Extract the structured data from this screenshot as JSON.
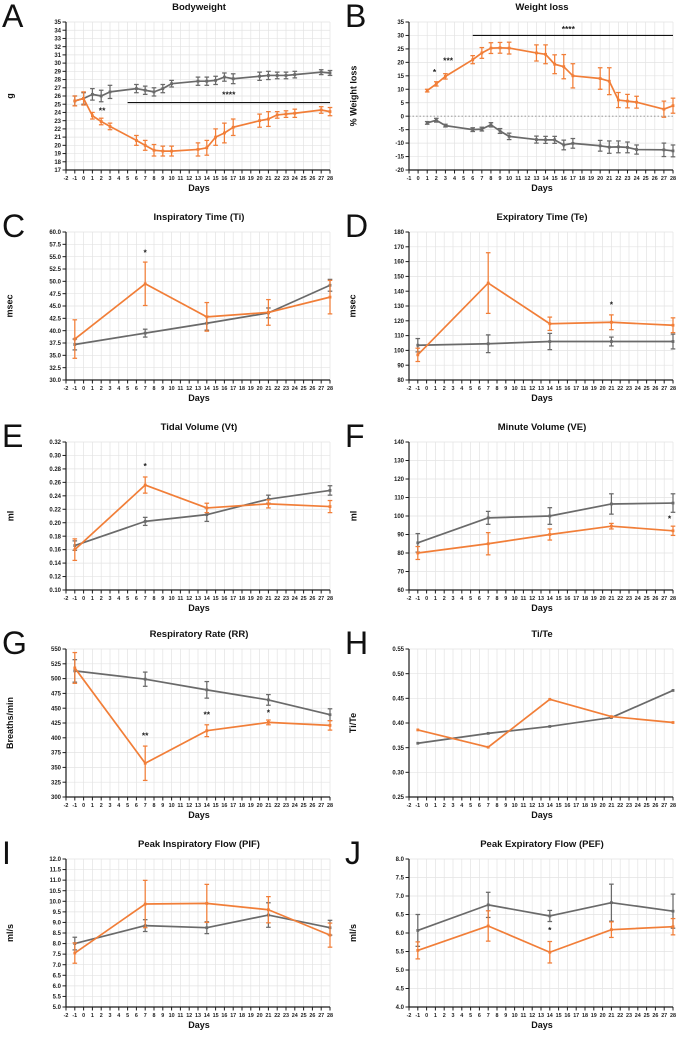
{
  "figure": {
    "xlabel_shared": "Days",
    "colors": {
      "control_gray": "#6A6A6A",
      "treated_orange": "#F17E38",
      "grid": "#E3E3E3",
      "axis": "#1c1c1c",
      "significance": "#111111"
    }
  },
  "chart_data": [
    {
      "id": "A",
      "type": "line",
      "title": "Bodyweight",
      "xlabel": "Days",
      "ylabel": "g",
      "xlim": [
        -2,
        28
      ],
      "ylim": [
        17,
        35
      ],
      "ystep": 1,
      "ydec": 0,
      "grid": true,
      "zero_line": false,
      "series": [
        {
          "name": "gray",
          "color": "#6A6A6A",
          "x": [
            -1,
            0,
            1,
            2,
            3,
            6,
            7,
            8,
            9,
            10,
            13,
            14,
            15,
            16,
            17,
            20,
            21,
            22,
            23,
            24,
            27,
            28
          ],
          "y": [
            25.4,
            25.7,
            26.2,
            26.0,
            26.5,
            26.9,
            26.7,
            26.5,
            26.9,
            27.5,
            27.8,
            27.8,
            27.9,
            28.3,
            28.1,
            28.4,
            28.5,
            28.5,
            28.5,
            28.6,
            28.9,
            28.8
          ],
          "err": [
            0.6,
            0.7,
            0.7,
            0.7,
            0.8,
            0.5,
            0.5,
            0.5,
            0.5,
            0.4,
            0.5,
            0.5,
            0.5,
            0.5,
            0.6,
            0.5,
            0.5,
            0.4,
            0.4,
            0.4,
            0.3,
            0.3
          ]
        },
        {
          "name": "orange",
          "color": "#F17E38",
          "x": [
            -1,
            0,
            1,
            2,
            3,
            6,
            7,
            8,
            9,
            10,
            13,
            14,
            15,
            16,
            17,
            20,
            21,
            22,
            23,
            24,
            27,
            28
          ],
          "y": [
            25.4,
            25.7,
            23.6,
            22.9,
            22.3,
            20.6,
            20.0,
            19.4,
            19.3,
            19.3,
            19.5,
            19.7,
            21.0,
            21.5,
            22.2,
            23.0,
            23.2,
            23.7,
            23.8,
            23.9,
            24.3,
            24.1
          ],
          "err": [
            0.6,
            0.8,
            0.4,
            0.4,
            0.4,
            0.6,
            0.6,
            0.7,
            0.6,
            0.6,
            0.8,
            0.9,
            1.0,
            1.2,
            1.0,
            0.8,
            0.9,
            0.4,
            0.4,
            0.5,
            0.4,
            0.5
          ]
        }
      ],
      "annotations": [
        {
          "type": "stars",
          "text": "**",
          "x": 2.1,
          "y": 23.9
        },
        {
          "type": "line",
          "x1": 5,
          "x2": 28,
          "y": 25.2
        },
        {
          "type": "stars",
          "text": "****",
          "x": 16.5,
          "y": 25.8
        }
      ]
    },
    {
      "id": "B",
      "type": "line",
      "title": "Weight loss",
      "xlabel": "Days",
      "ylabel": "% Weight loss",
      "xlim": [
        -1,
        28
      ],
      "ylim": [
        -20,
        35
      ],
      "ystep": 5,
      "ydec": 0,
      "grid": true,
      "zero_line": true,
      "series": [
        {
          "name": "gray",
          "color": "#6A6A6A",
          "x": [
            1,
            2,
            3,
            6,
            7,
            8,
            9,
            10,
            13,
            14,
            15,
            16,
            17,
            20,
            21,
            22,
            23,
            24,
            27,
            28
          ],
          "y": [
            -2.5,
            -1.5,
            -3.5,
            -5.0,
            -4.8,
            -3.2,
            -5.5,
            -7.5,
            -8.7,
            -8.8,
            -8.8,
            -10.7,
            -10.1,
            -11.0,
            -11.5,
            -11.4,
            -11.6,
            -12.4,
            -12.5,
            -12.9
          ],
          "err": [
            0.5,
            0.7,
            0.5,
            0.7,
            0.7,
            0.8,
            0.9,
            1.2,
            1.3,
            1.3,
            1.3,
            1.8,
            1.8,
            2.0,
            2.3,
            2.2,
            2.0,
            1.7,
            2.5,
            2.2
          ]
        },
        {
          "name": "orange",
          "color": "#F17E38",
          "x": [
            1,
            2,
            3,
            6,
            7,
            8,
            9,
            10,
            13,
            14,
            15,
            16,
            17,
            20,
            21,
            22,
            23,
            24,
            27,
            28
          ],
          "y": [
            9.5,
            12.0,
            14.8,
            21.0,
            23.5,
            25.3,
            25.4,
            25.3,
            23.5,
            23.0,
            19.3,
            18.4,
            15.0,
            14.0,
            13.0,
            6.0,
            5.6,
            5.2,
            2.6,
            3.9
          ],
          "err": [
            0.5,
            0.8,
            1.0,
            1.5,
            2.0,
            2.0,
            2.0,
            2.2,
            3.0,
            3.5,
            3.5,
            4.5,
            4.5,
            4.0,
            5.0,
            2.8,
            2.5,
            2.2,
            3.0,
            2.8
          ]
        }
      ],
      "annotations": [
        {
          "type": "stars",
          "text": "*",
          "x": 1.8,
          "y": 15.3
        },
        {
          "type": "stars",
          "text": "***",
          "x": 3.3,
          "y": 19.5
        },
        {
          "type": "line",
          "x1": 6,
          "x2": 28,
          "y": 30
        },
        {
          "type": "stars",
          "text": "****",
          "x": 16.5,
          "y": 31.3
        }
      ]
    },
    {
      "id": "C",
      "type": "line",
      "title": "Inspiratory Time (Ti)",
      "xlabel": "Days",
      "ylabel": "msec",
      "xlim": [
        -2,
        28
      ],
      "ylim": [
        30,
        60
      ],
      "ystep": 2.5,
      "ydec": 1,
      "grid": true,
      "zero_line": false,
      "series": [
        {
          "name": "gray",
          "color": "#6A6A6A",
          "x": [
            -1,
            7,
            14,
            21,
            28
          ],
          "y": [
            37.2,
            39.5,
            41.5,
            43.6,
            49.2
          ],
          "err": [
            1.1,
            0.8,
            1.4,
            1.0,
            1.2
          ]
        },
        {
          "name": "orange",
          "color": "#F17E38",
          "x": [
            -1,
            7,
            14,
            21,
            28
          ],
          "y": [
            38.3,
            49.5,
            42.8,
            43.7,
            46.8
          ],
          "err": [
            3.9,
            4.4,
            2.9,
            2.6,
            3.4
          ]
        }
      ],
      "annotations": [
        {
          "type": "stars",
          "text": "*",
          "x": 7,
          "y": 55.2
        }
      ]
    },
    {
      "id": "D",
      "type": "line",
      "title": "Expiratory Time (Te)",
      "xlabel": "Days",
      "ylabel": "msec",
      "xlim": [
        -2,
        28
      ],
      "ylim": [
        80,
        180
      ],
      "ystep": 10,
      "ydec": 0,
      "grid": true,
      "zero_line": false,
      "series": [
        {
          "name": "gray",
          "color": "#6A6A6A",
          "x": [
            -1,
            7,
            14,
            21,
            28
          ],
          "y": [
            103.5,
            104.5,
            106,
            106,
            106
          ],
          "err": [
            4.5,
            6,
            5.5,
            3,
            5
          ]
        },
        {
          "name": "orange",
          "color": "#F17E38",
          "x": [
            -1,
            7,
            14,
            21,
            28
          ],
          "y": [
            97,
            145.5,
            118,
            119,
            117
          ],
          "err": [
            4.5,
            20.5,
            4.5,
            5,
            5
          ]
        }
      ],
      "annotations": [
        {
          "type": "stars",
          "text": "*",
          "x": 21,
          "y": 129
        }
      ]
    },
    {
      "id": "E",
      "type": "line",
      "title": "Tidal Volume (Vt)",
      "xlabel": "Days",
      "ylabel": "ml",
      "xlim": [
        -2,
        28
      ],
      "ylim": [
        0.1,
        0.32
      ],
      "ystep": 0.02,
      "ydec": 2,
      "grid": true,
      "zero_line": false,
      "series": [
        {
          "name": "gray",
          "color": "#6A6A6A",
          "x": [
            -1,
            7,
            14,
            21,
            28
          ],
          "y": [
            0.166,
            0.202,
            0.212,
            0.235,
            0.248
          ],
          "err": [
            0.007,
            0.006,
            0.01,
            0.006,
            0.007
          ]
        },
        {
          "name": "orange",
          "color": "#F17E38",
          "x": [
            -1,
            7,
            14,
            21,
            28
          ],
          "y": [
            0.16,
            0.256,
            0.222,
            0.228,
            0.224
          ],
          "err": [
            0.016,
            0.012,
            0.007,
            0.006,
            0.009
          ]
        }
      ],
      "annotations": [
        {
          "type": "stars",
          "text": "*",
          "x": 7,
          "y": 0.28
        }
      ]
    },
    {
      "id": "F",
      "type": "line",
      "title": "Minute Volume (VE)",
      "xlabel": "Days",
      "ylabel": "ml",
      "xlim": [
        -2,
        28
      ],
      "ylim": [
        60,
        140
      ],
      "ystep": 10,
      "ydec": 0,
      "grid": true,
      "zero_line": false,
      "series": [
        {
          "name": "gray",
          "color": "#6A6A6A",
          "x": [
            -1,
            7,
            14,
            21,
            28
          ],
          "y": [
            85.5,
            99,
            100,
            106.5,
            107
          ],
          "err": [
            5,
            3.5,
            4.5,
            5.5,
            5
          ]
        },
        {
          "name": "orange",
          "color": "#F17E38",
          "x": [
            -1,
            7,
            14,
            21,
            28
          ],
          "y": [
            80,
            85,
            90,
            94.5,
            92
          ],
          "err": [
            3.5,
            6,
            3,
            1.5,
            2.5
          ]
        }
      ],
      "annotations": [
        {
          "type": "stars",
          "text": "*",
          "x": 27.6,
          "y": 97
        }
      ]
    },
    {
      "id": "G",
      "type": "line",
      "title": "Respiratory Rate (RR)",
      "xlabel": "Days",
      "ylabel": "Breaths/min",
      "xlim": [
        -2,
        28
      ],
      "ylim": [
        300,
        550
      ],
      "ystep": 25,
      "ydec": 0,
      "grid": true,
      "zero_line": false,
      "series": [
        {
          "name": "gray",
          "color": "#6A6A6A",
          "x": [
            -1,
            7,
            14,
            21,
            28
          ],
          "y": [
            513,
            499,
            481,
            464,
            439
          ],
          "err": [
            19,
            12,
            14,
            9,
            10
          ]
        },
        {
          "name": "orange",
          "color": "#F17E38",
          "x": [
            -1,
            7,
            14,
            21,
            28
          ],
          "y": [
            518,
            357,
            412,
            426,
            421
          ],
          "err": [
            26,
            29,
            10,
            4,
            8
          ]
        }
      ],
      "annotations": [
        {
          "type": "stars",
          "text": "**",
          "x": 7,
          "y": 399
        },
        {
          "type": "stars",
          "text": "**",
          "x": 14,
          "y": 434
        },
        {
          "type": "stars",
          "text": "*",
          "x": 21,
          "y": 438
        }
      ]
    },
    {
      "id": "H",
      "type": "line",
      "title": "Ti/Te",
      "xlabel": "Days",
      "ylabel": "Ti/Te",
      "xlim": [
        -2,
        28
      ],
      "ylim": [
        0.25,
        0.55
      ],
      "ystep": 0.05,
      "ydec": 2,
      "grid": true,
      "zero_line": false,
      "series": [
        {
          "name": "gray",
          "color": "#6A6A6A",
          "x": [
            -1,
            7,
            14,
            21,
            28
          ],
          "y": [
            0.359,
            0.379,
            0.393,
            0.411,
            0.466
          ],
          "err": [
            0,
            0,
            0,
            0,
            0
          ]
        },
        {
          "name": "orange",
          "color": "#F17E38",
          "x": [
            -1,
            7,
            14,
            21,
            28
          ],
          "y": [
            0.386,
            0.351,
            0.448,
            0.413,
            0.401
          ],
          "err": [
            0,
            0,
            0,
            0,
            0
          ]
        }
      ],
      "annotations": []
    },
    {
      "id": "I",
      "type": "line",
      "title": "Peak Inspiratory Flow (PIF)",
      "xlabel": "Days",
      "ylabel": "ml/s",
      "xlim": [
        -2,
        28
      ],
      "ylim": [
        5.0,
        12.0
      ],
      "ystep": 0.5,
      "ydec": 1,
      "grid": true,
      "zero_line": false,
      "series": [
        {
          "name": "gray",
          "color": "#6A6A6A",
          "x": [
            -1,
            7,
            14,
            21,
            28
          ],
          "y": [
            8.0,
            8.85,
            8.75,
            9.35,
            8.75
          ],
          "err": [
            0.3,
            0.28,
            0.28,
            0.58,
            0.35
          ]
        },
        {
          "name": "orange",
          "color": "#F17E38",
          "x": [
            -1,
            7,
            14,
            21,
            28
          ],
          "y": [
            7.55,
            9.87,
            9.9,
            9.6,
            8.4
          ],
          "err": [
            0.48,
            1.12,
            0.9,
            0.62,
            0.57
          ]
        }
      ],
      "annotations": []
    },
    {
      "id": "J",
      "type": "line",
      "title": "Peak Expiratory Flow (PEF)",
      "xlabel": "Days",
      "ylabel": "ml/s",
      "xlim": [
        -2,
        28
      ],
      "ylim": [
        4.0,
        8.0
      ],
      "ystep": 0.5,
      "ydec": 1,
      "grid": true,
      "zero_line": false,
      "series": [
        {
          "name": "gray",
          "color": "#6A6A6A",
          "x": [
            -1,
            7,
            14,
            21,
            28
          ],
          "y": [
            6.07,
            6.76,
            6.46,
            6.82,
            6.59
          ],
          "err": [
            0.43,
            0.34,
            0.15,
            0.5,
            0.46
          ]
        },
        {
          "name": "orange",
          "color": "#F17E38",
          "x": [
            -1,
            7,
            14,
            21,
            28
          ],
          "y": [
            5.53,
            6.19,
            5.48,
            6.09,
            6.17
          ],
          "err": [
            0.23,
            0.41,
            0.29,
            0.21,
            0.22
          ]
        }
      ],
      "annotations": [
        {
          "type": "stars",
          "text": "*",
          "x": 14,
          "y": 6.0
        }
      ]
    }
  ]
}
